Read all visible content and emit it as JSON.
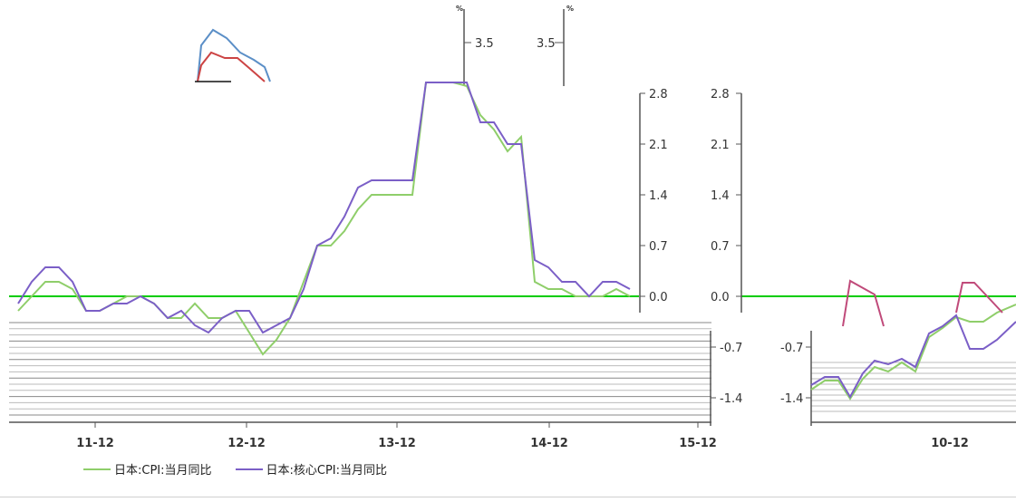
{
  "chart_data": {
    "type": "line",
    "unit_top": "%",
    "left_axis_top_tick": "3.5",
    "right_axis_top_tick": "3.5",
    "y_ticks": [
      2.8,
      2.1,
      1.4,
      0.7,
      0.0,
      -0.7,
      -1.4
    ],
    "ylim": [
      -1.75,
      2.8
    ],
    "x_tick_labels": [
      "11-12",
      "12-12",
      "13-12",
      "14-12",
      "15-12"
    ],
    "x_tick_labels_right": [
      "10-12"
    ],
    "zero_line_color": "#00cc00",
    "series": [
      {
        "name": "日本:CPI:当月同比",
        "color": "#8fce6a",
        "values": [
          -0.2,
          0.0,
          0.2,
          0.2,
          0.1,
          -0.2,
          -0.2,
          -0.1,
          0.0,
          0.0,
          -0.1,
          -0.3,
          -0.3,
          -0.1,
          -0.3,
          -0.3,
          -0.2,
          -0.5,
          -0.8,
          -0.6,
          -0.3,
          0.2,
          0.7,
          0.7,
          0.9,
          1.2,
          1.4,
          1.4,
          1.4,
          1.4,
          3.0,
          3.0,
          3.0,
          2.9,
          2.5,
          2.3,
          2.0,
          2.2,
          0.2,
          0.1,
          0.1,
          0.0,
          0.0,
          0.0,
          0.1,
          0.0
        ]
      },
      {
        "name": "日本:核心CPI:当月同比",
        "color": "#7b5fc7",
        "values": [
          -0.1,
          0.2,
          0.4,
          0.4,
          0.2,
          -0.2,
          -0.2,
          -0.1,
          -0.1,
          0.0,
          -0.1,
          -0.3,
          -0.2,
          -0.4,
          -0.5,
          -0.3,
          -0.2,
          -0.2,
          -0.5,
          -0.4,
          -0.3,
          0.1,
          0.7,
          0.8,
          1.1,
          1.5,
          1.6,
          1.6,
          1.6,
          1.6,
          3.2,
          3.2,
          3.1,
          3.0,
          2.4,
          2.4,
          2.1,
          2.1,
          0.5,
          0.4,
          0.2,
          0.2,
          0.0,
          0.2,
          0.2,
          0.1
        ]
      }
    ]
  },
  "legend": {
    "item1": "日本:CPI:当月同比",
    "item2": "日本:核心CPI:当月同比"
  }
}
